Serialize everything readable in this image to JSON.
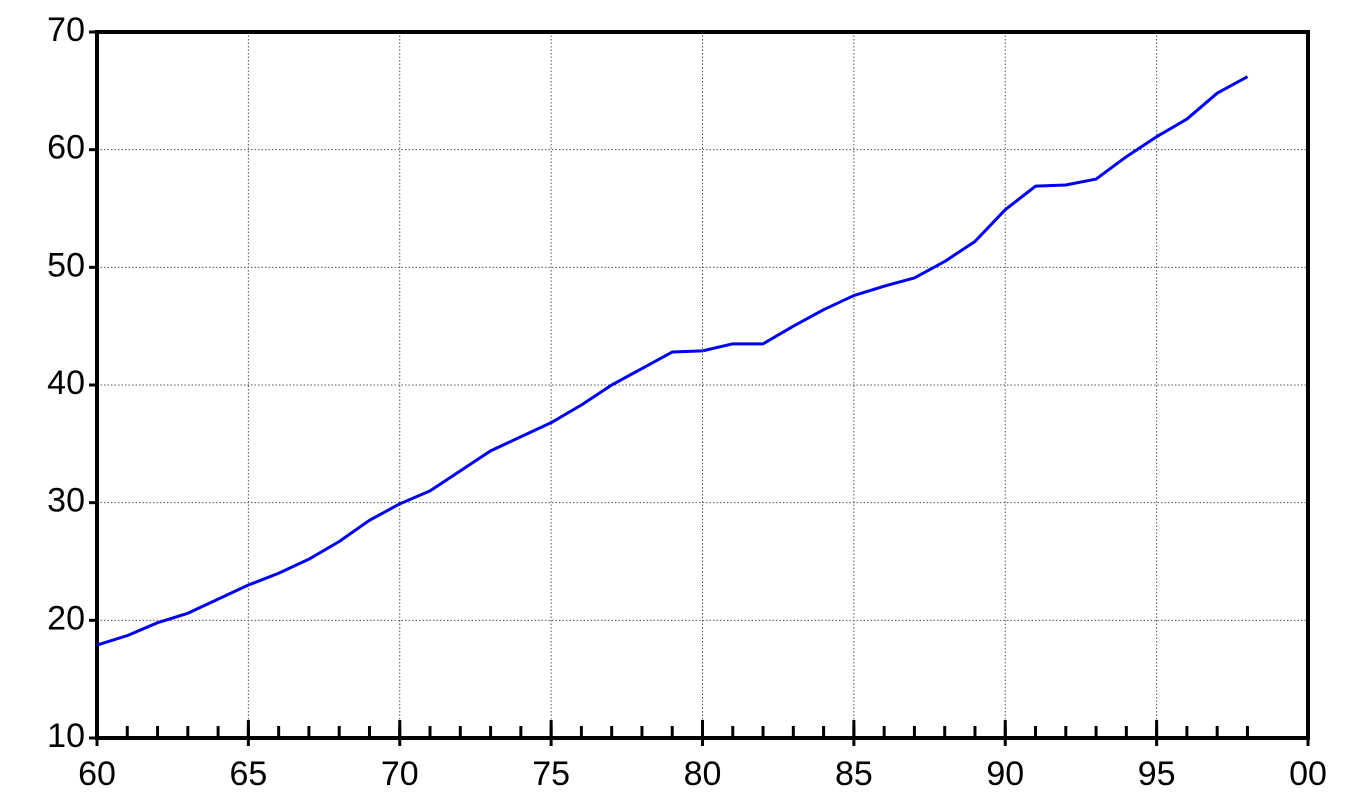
{
  "chart_data": {
    "type": "line",
    "x": [
      60,
      61,
      62,
      63,
      64,
      65,
      66,
      67,
      68,
      69,
      70,
      71,
      72,
      73,
      74,
      75,
      76,
      77,
      78,
      79,
      80,
      81,
      82,
      83,
      84,
      85,
      86,
      87,
      88,
      89,
      90,
      91,
      92,
      93,
      94,
      95,
      96,
      97,
      98
    ],
    "series": [
      {
        "color": "#0000ee",
        "values": [
          17.9,
          18.7,
          19.8,
          20.6,
          21.8,
          23.0,
          24.0,
          25.2,
          26.7,
          28.5,
          29.9,
          31.0,
          32.7,
          34.4,
          35.6,
          36.8,
          38.3,
          40.0,
          41.4,
          42.8,
          42.9,
          43.5,
          43.5,
          45.0,
          46.4,
          47.6,
          48.4,
          49.1,
          50.5,
          52.2,
          54.9,
          56.9,
          57.0,
          57.5,
          59.4,
          61.1,
          62.6,
          64.8,
          66.2
        ]
      }
    ],
    "xlim": [
      60,
      100
    ],
    "xticks": [
      60,
      65,
      70,
      75,
      80,
      85,
      90,
      95,
      {
        "value": 100,
        "label": "00"
      }
    ],
    "ylim": [
      10,
      70
    ],
    "yticks": [
      10,
      20,
      30,
      40,
      50,
      60,
      70
    ],
    "grid": true
  }
}
